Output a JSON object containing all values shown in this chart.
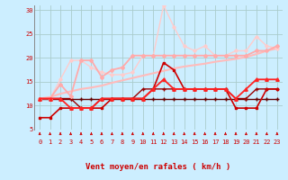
{
  "xlabel": "Vent moyen/en rafales ( km/h )",
  "background_color": "#cceeff",
  "grid_color": "#aacccc",
  "x": [
    0,
    1,
    2,
    3,
    4,
    5,
    6,
    7,
    8,
    9,
    10,
    11,
    12,
    13,
    14,
    15,
    16,
    17,
    18,
    19,
    20,
    21,
    22,
    23
  ],
  "ylim": [
    5,
    31
  ],
  "yticks": [
    5,
    10,
    15,
    20,
    25,
    30
  ],
  "series": [
    {
      "y": [
        7.5,
        7.5,
        9.5,
        9.5,
        9.5,
        9.5,
        9.5,
        11.5,
        11.5,
        11.5,
        11.5,
        13.5,
        19.0,
        17.5,
        13.5,
        13.5,
        13.5,
        13.5,
        13.5,
        9.5,
        9.5,
        9.5,
        13.5,
        13.5
      ],
      "color": "#cc0000",
      "lw": 1.2,
      "marker": "s",
      "ms": 2.0,
      "zorder": 4
    },
    {
      "y": [
        11.5,
        11.5,
        11.5,
        11.5,
        11.5,
        11.5,
        11.5,
        11.5,
        11.5,
        11.5,
        11.5,
        11.5,
        11.5,
        11.5,
        11.5,
        11.5,
        11.5,
        11.5,
        11.5,
        11.5,
        11.5,
        11.5,
        11.5,
        11.5
      ],
      "color": "#660000",
      "lw": 1.0,
      "marker": "+",
      "ms": 3.0,
      "zorder": 3
    },
    {
      "y": [
        11.5,
        11.5,
        11.5,
        11.5,
        9.5,
        9.5,
        11.5,
        11.5,
        11.5,
        11.5,
        13.5,
        13.5,
        13.5,
        13.5,
        13.5,
        13.5,
        13.5,
        13.5,
        13.5,
        11.5,
        11.5,
        13.5,
        13.5,
        13.5
      ],
      "color": "#990000",
      "lw": 1.0,
      "marker": "+",
      "ms": 2.5,
      "zorder": 3
    },
    {
      "y": [
        11.5,
        11.5,
        11.5,
        9.5,
        9.5,
        9.5,
        11.5,
        11.5,
        11.5,
        11.5,
        11.5,
        13.5,
        15.5,
        13.5,
        13.5,
        13.5,
        13.5,
        13.5,
        13.5,
        11.5,
        13.5,
        15.5,
        15.5,
        15.5
      ],
      "color": "#ff2222",
      "lw": 1.3,
      "marker": "^",
      "ms": 2.5,
      "zorder": 4
    },
    {
      "y": [
        11.5,
        11.8,
        12.5,
        13.0,
        13.5,
        13.8,
        14.2,
        14.8,
        15.3,
        15.8,
        16.3,
        16.8,
        17.3,
        17.8,
        18.2,
        18.5,
        18.8,
        19.2,
        19.5,
        19.8,
        20.2,
        20.8,
        21.5,
        22.0
      ],
      "color": "#ffbbbb",
      "lw": 1.5,
      "marker": null,
      "ms": 0,
      "zorder": 2
    },
    {
      "y": [
        11.5,
        11.5,
        14.5,
        12.0,
        19.5,
        19.5,
        16.0,
        17.5,
        18.0,
        20.5,
        20.5,
        20.5,
        20.5,
        20.5,
        20.5,
        20.5,
        20.5,
        20.5,
        20.5,
        20.5,
        20.5,
        21.5,
        21.5,
        22.5
      ],
      "color": "#ffaaaa",
      "lw": 1.3,
      "marker": "D",
      "ms": 2.0,
      "zorder": 3
    },
    {
      "y": [
        11.5,
        11.5,
        15.5,
        19.5,
        19.5,
        18.0,
        17.0,
        16.5,
        16.5,
        17.0,
        20.5,
        20.5,
        31.0,
        26.5,
        22.5,
        21.5,
        22.5,
        20.5,
        20.5,
        21.5,
        21.5,
        24.5,
        22.5,
        22.0
      ],
      "color": "#ffcccc",
      "lw": 1.0,
      "marker": "D",
      "ms": 1.8,
      "zorder": 2
    }
  ],
  "tick_label_color": "#cc0000",
  "tick_label_size": 5.0,
  "xlabel_size": 6.5,
  "arrow_color": "#cc0000"
}
